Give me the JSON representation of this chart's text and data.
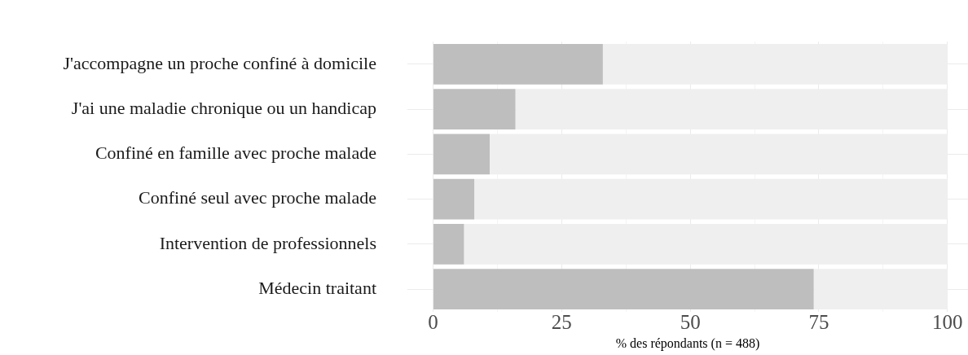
{
  "chart_data": {
    "type": "bar",
    "orientation": "horizontal",
    "stacked": true,
    "categories": [
      "J'accompagne un proche confiné à domicile",
      "J'ai une maladie chronique ou un handicap",
      "Confiné en famille avec proche malade",
      "Confiné seul avec proche malade",
      "Intervention de professionnels",
      "Médecin traitant"
    ],
    "series": [
      {
        "color": "#bebebe",
        "values": [
          33,
          16,
          11,
          8,
          6,
          74
        ]
      },
      {
        "color": "#efefef",
        "values": [
          67,
          84,
          89,
          92,
          94,
          26
        ]
      }
    ],
    "xlabel": "% des répondants (n = 488)",
    "xlim": [
      -5,
      104
    ],
    "xticks": [
      0,
      {
        "value": 12.5,
        "label": null
      },
      25,
      {
        "value": 37.5,
        "label": null
      },
      50,
      {
        "value": 62.5,
        "label": null
      },
      75,
      {
        "value": 87.5,
        "label": null
      },
      100
    ],
    "grid": true,
    "legend": false
  }
}
